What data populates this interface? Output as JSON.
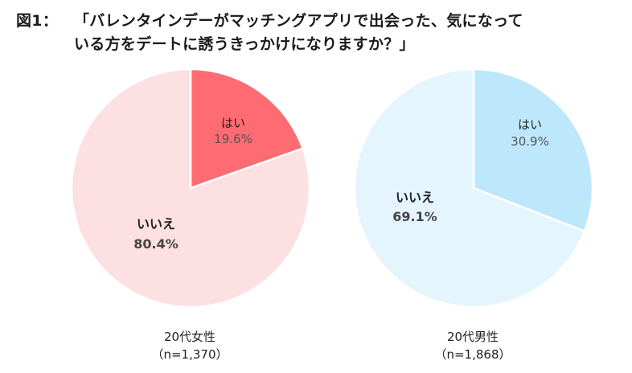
{
  "figure": {
    "number_label": "図1：",
    "title_line1": "「バレンタインデーがマッチングアプリで出会った、気になって",
    "title_line2": "いる方をデートに誘うきっかけになりますか？」"
  },
  "chart_data": [
    {
      "type": "pie",
      "group_label": "20代女性",
      "n_label": "（n=1,370）",
      "start_angle_deg": 0,
      "direction": "clockwise",
      "slices": [
        {
          "label": "はい",
          "value": 19.6,
          "value_label": "19.6%",
          "color": "#ff6b72"
        },
        {
          "label": "いいえ",
          "value": 80.4,
          "value_label": "80.4%",
          "color": "#fde0e1"
        }
      ]
    },
    {
      "type": "pie",
      "group_label": "20代男性",
      "n_label": "（n=1,868）",
      "start_angle_deg": 0,
      "direction": "clockwise",
      "slices": [
        {
          "label": "はい",
          "value": 30.9,
          "value_label": "30.9%",
          "color": "#bde7fb"
        },
        {
          "label": "いいえ",
          "value": 69.1,
          "value_label": "69.1%",
          "color": "#e5f5fd"
        }
      ]
    }
  ]
}
